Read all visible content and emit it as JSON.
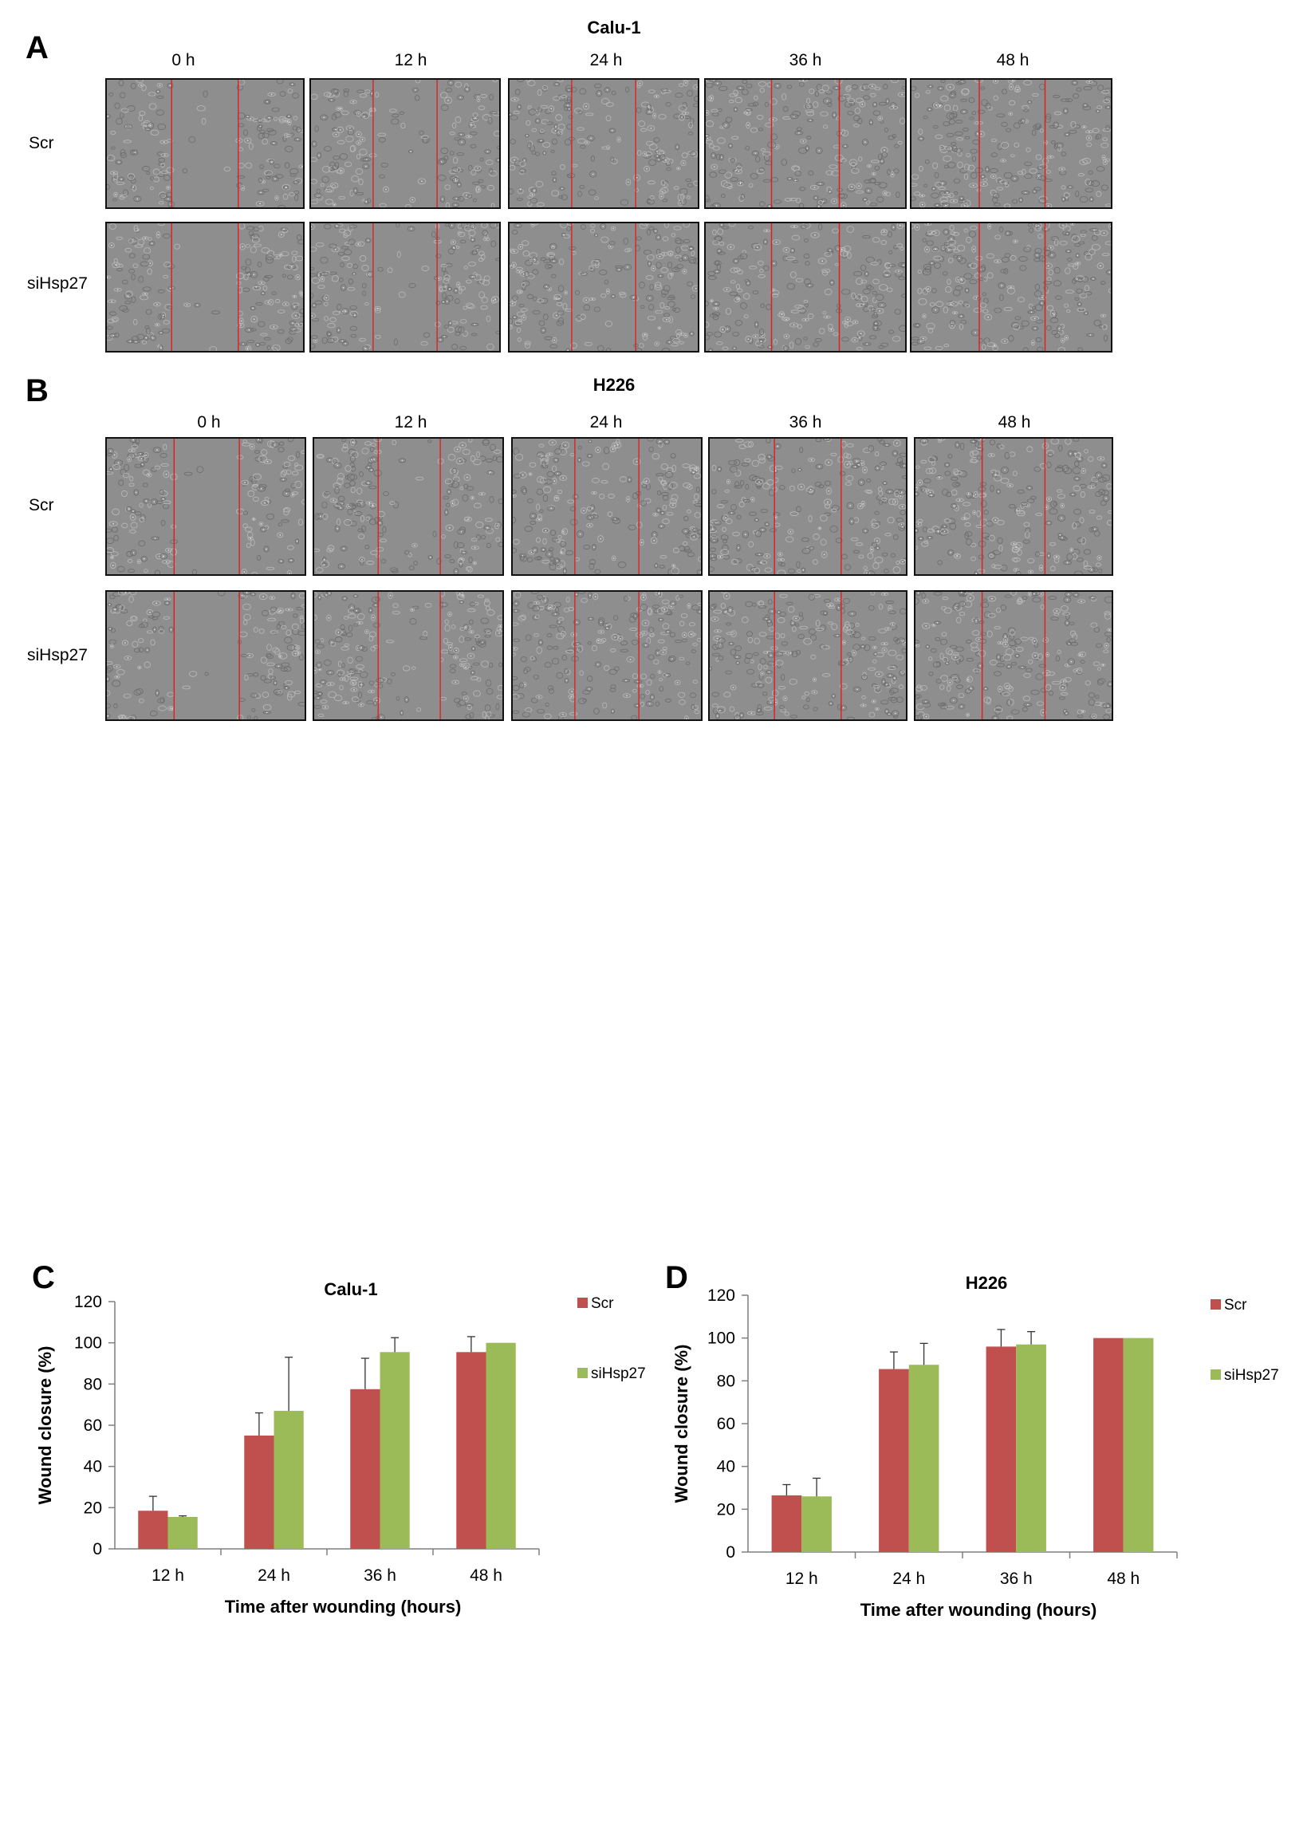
{
  "panel_a": {
    "letter": "A",
    "title": "Calu-1",
    "times": [
      "0 h",
      "12 h",
      "24 h",
      "36 h",
      "48 h"
    ],
    "rows": [
      "Scr",
      "siHsp27"
    ]
  },
  "panel_b": {
    "letter": "B",
    "title": "H226",
    "times": [
      "0 h",
      "12 h",
      "24 h",
      "36 h",
      "48 h"
    ],
    "rows": [
      "Scr",
      "siHsp27"
    ]
  },
  "colors": {
    "scr": "#c0504d",
    "sihsp27": "#9bbb59",
    "wound_line": "#e02020",
    "axis": "#7f7f7f"
  },
  "chart_data": [
    {
      "panel": "C",
      "type": "bar",
      "title": "Calu-1",
      "xlabel": "Time after wounding (hours)",
      "ylabel": "Wound closure (%)",
      "categories": [
        "12 h",
        "24 h",
        "36 h",
        "48 h"
      ],
      "ylim": [
        0,
        120
      ],
      "yticks": [
        0,
        20,
        40,
        60,
        80,
        100,
        120
      ],
      "legend_position": "right",
      "series": [
        {
          "name": "Scr",
          "values": [
            18.5,
            55,
            77.5,
            95.5
          ],
          "errors": [
            7,
            11,
            15,
            7.5
          ]
        },
        {
          "name": "siHsp27",
          "values": [
            15.5,
            67,
            95.5,
            100
          ],
          "errors": [
            0.5,
            26,
            7,
            0
          ]
        }
      ]
    },
    {
      "panel": "D",
      "type": "bar",
      "title": "H226",
      "xlabel": "Time after wounding (hours)",
      "ylabel": "Wound closure (%)",
      "categories": [
        "12 h",
        "24 h",
        "36 h",
        "48 h"
      ],
      "ylim": [
        0,
        120
      ],
      "yticks": [
        0,
        20,
        40,
        60,
        80,
        100,
        120
      ],
      "legend_position": "right",
      "series": [
        {
          "name": "Scr",
          "values": [
            26.5,
            85.5,
            96,
            100
          ],
          "errors": [
            5,
            8,
            8,
            0
          ]
        },
        {
          "name": "siHsp27",
          "values": [
            26,
            87.5,
            97,
            100
          ],
          "errors": [
            8.5,
            10,
            6,
            0
          ]
        }
      ]
    }
  ]
}
